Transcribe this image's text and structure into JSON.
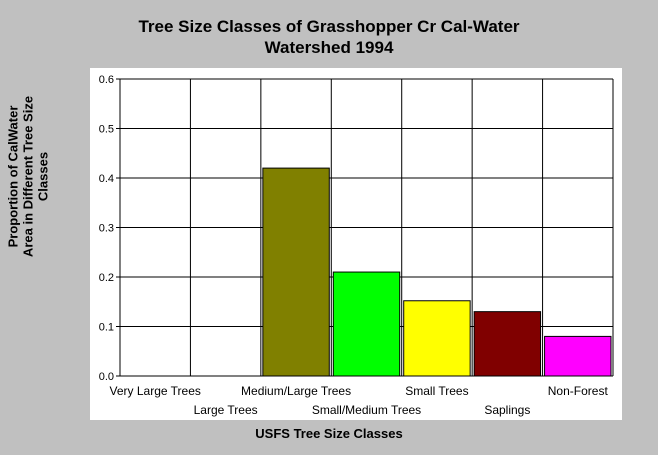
{
  "chart_data": {
    "type": "bar",
    "title_lines": [
      "Tree Size Classes of Grasshopper Cr Cal-Water",
      "Watershed 1994"
    ],
    "ylabel_lines": [
      "Proportion of CalWater",
      "Area in Different Tree Size",
      "Classes"
    ],
    "xlabel": "USFS Tree Size Classes",
    "categories": [
      "Very Large Trees",
      "Large Trees",
      "Medium/Large Trees",
      "Small/Medium Trees",
      "Small Trees",
      "Saplings",
      "Non-Forest"
    ],
    "values": [
      0,
      0,
      0.42,
      0.21,
      0.152,
      0.13,
      0.08
    ],
    "colors": [
      "#ffffff",
      "#ffffff",
      "#808000",
      "#00ff00",
      "#ffff00",
      "#800000",
      "#ff00ff"
    ],
    "ylim": [
      0,
      0.6
    ],
    "yticks": [
      "0.0",
      "0.1",
      "0.2",
      "0.3",
      "0.4",
      "0.5",
      "0.6"
    ],
    "grid": true,
    "legend": "none"
  }
}
